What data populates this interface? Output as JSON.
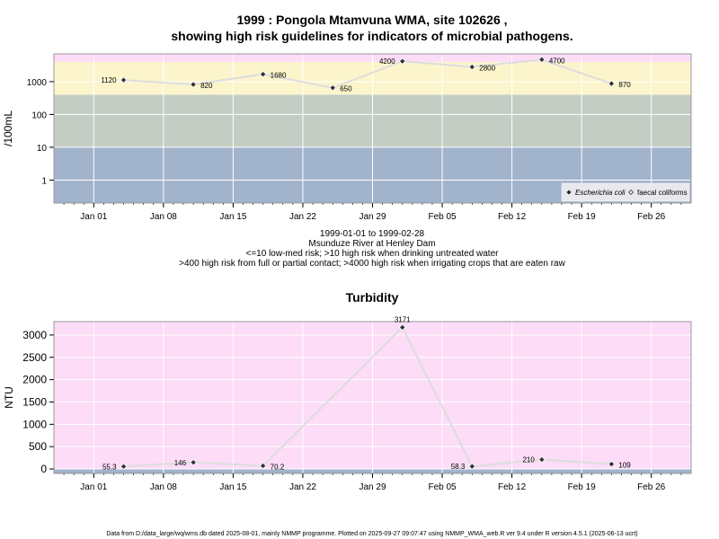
{
  "chart_data": [
    {
      "type": "scatter",
      "title_line1": "1999 : Pongola Mtamvuna WMA, site 102626 ,",
      "title_line2": "showing high risk guidelines for indicators of microbial pathogens.",
      "ylabel": "/100mL",
      "scale": "log10",
      "ylim": [
        0.2,
        7000
      ],
      "xlim": [
        "1998-12-28",
        "1999-03-02"
      ],
      "yticks": [
        {
          "v": 1,
          "label": "1"
        },
        {
          "v": 10,
          "label": "10"
        },
        {
          "v": 100,
          "label": "100"
        },
        {
          "v": 1000,
          "label": "1000"
        }
      ],
      "xticks": [
        {
          "date": "1999-01-01",
          "label": "Jan 01"
        },
        {
          "date": "1999-01-08",
          "label": "Jan 08"
        },
        {
          "date": "1999-01-15",
          "label": "Jan 15"
        },
        {
          "date": "1999-01-22",
          "label": "Jan 22"
        },
        {
          "date": "1999-01-29",
          "label": "Jan 29"
        },
        {
          "date": "1999-02-05",
          "label": "Feb 05"
        },
        {
          "date": "1999-02-12",
          "label": "Feb 12"
        },
        {
          "date": "1999-02-19",
          "label": "Feb 19"
        },
        {
          "date": "1999-02-26",
          "label": "Feb 26"
        }
      ],
      "bands": [
        {
          "from": 0.2,
          "to": 10,
          "color": "#a2b3cc"
        },
        {
          "from": 10,
          "to": 400,
          "color": "#c3cdc4"
        },
        {
          "from": 400,
          "to": 4000,
          "color": "#fcf5cc"
        },
        {
          "from": 4000,
          "to": 7000,
          "color": "#fcdcf7"
        }
      ],
      "grid": true,
      "series": [
        {
          "name": "Escherichia coli",
          "marker": "filled-diamond",
          "points": [
            {
              "date": "1999-01-04",
              "value": 1120,
              "label": "1120",
              "side": "left"
            },
            {
              "date": "1999-01-11",
              "value": 820,
              "label": "820",
              "side": "right"
            },
            {
              "date": "1999-01-18",
              "value": 1680,
              "label": "1680",
              "side": "right"
            },
            {
              "date": "1999-01-25",
              "value": 650,
              "label": "650",
              "side": "right"
            },
            {
              "date": "1999-02-01",
              "value": 4200,
              "label": "4200",
              "side": "left"
            },
            {
              "date": "1999-02-08",
              "value": 2800,
              "label": "2800",
              "side": "right"
            },
            {
              "date": "1999-02-15",
              "value": 4700,
              "label": "4700",
              "side": "right"
            },
            {
              "date": "1999-02-22",
              "value": 870,
              "label": "870",
              "side": "right"
            }
          ]
        },
        {
          "name": "faecal coliforms",
          "marker": "open-diamond",
          "points": []
        }
      ],
      "legend": {
        "position": "bottom-right",
        "items": [
          "Escherichia coli",
          "faecal coliforms"
        ]
      },
      "captions": [
        "1999-01-01 to 1999-02-28",
        "Msunduze River at Henley Dam",
        "<=10 low-med risk; >10 high risk when drinking untreated water",
        ">400 high risk from full or partial contact; >4000 high risk when irrigating crops that are eaten raw"
      ]
    },
    {
      "type": "scatter",
      "title": "Turbidity",
      "ylabel": "NTU",
      "ylim": [
        -100,
        3300
      ],
      "xlim": [
        "1998-12-28",
        "1999-03-02"
      ],
      "yticks": [
        {
          "v": 0,
          "label": "0"
        },
        {
          "v": 500,
          "label": "500"
        },
        {
          "v": 1000,
          "label": "1000"
        },
        {
          "v": 1500,
          "label": "1500"
        },
        {
          "v": 2000,
          "label": "2000"
        },
        {
          "v": 2500,
          "label": "2500"
        },
        {
          "v": 3000,
          "label": "3000"
        }
      ],
      "xticks": [
        {
          "date": "1999-01-01",
          "label": "Jan 01"
        },
        {
          "date": "1999-01-08",
          "label": "Jan 08"
        },
        {
          "date": "1999-01-15",
          "label": "Jan 15"
        },
        {
          "date": "1999-01-22",
          "label": "Jan 22"
        },
        {
          "date": "1999-01-29",
          "label": "Jan 29"
        },
        {
          "date": "1999-02-05",
          "label": "Feb 05"
        },
        {
          "date": "1999-02-12",
          "label": "Feb 12"
        },
        {
          "date": "1999-02-19",
          "label": "Feb 19"
        },
        {
          "date": "1999-02-26",
          "label": "Feb 26"
        }
      ],
      "bands": [
        {
          "from": -100,
          "to": 1,
          "color": "#a2b3cc"
        },
        {
          "from": 1,
          "to": 3300,
          "color": "#fcdcf7"
        }
      ],
      "grid": true,
      "series": [
        {
          "name": "Turbidity",
          "marker": "filled-diamond",
          "points": [
            {
              "date": "1999-01-04",
              "value": 55.3,
              "label": "55.3",
              "side": "left"
            },
            {
              "date": "1999-01-11",
              "value": 146,
              "label": "146",
              "side": "left"
            },
            {
              "date": "1999-01-18",
              "value": 70.2,
              "label": "70.2",
              "side": "right"
            },
            {
              "date": "1999-02-01",
              "value": 3171,
              "label": "3171",
              "side": "above"
            },
            {
              "date": "1999-02-08",
              "value": 58.3,
              "label": "58.3",
              "side": "left"
            },
            {
              "date": "1999-02-15",
              "value": 210,
              "label": "210",
              "side": "left"
            },
            {
              "date": "1999-02-22",
              "value": 109,
              "label": "109",
              "side": "right"
            }
          ]
        }
      ]
    }
  ],
  "footer": "Data from D:/data_large/wq/wms.db dated 2025-08-01, mainly NMMP programme. Plotted on 2025-09-27 09:07:47 using NMMP_WMA_web.R ver 9.4 under R version 4.5.1 (2025-06-13 ucrt)"
}
